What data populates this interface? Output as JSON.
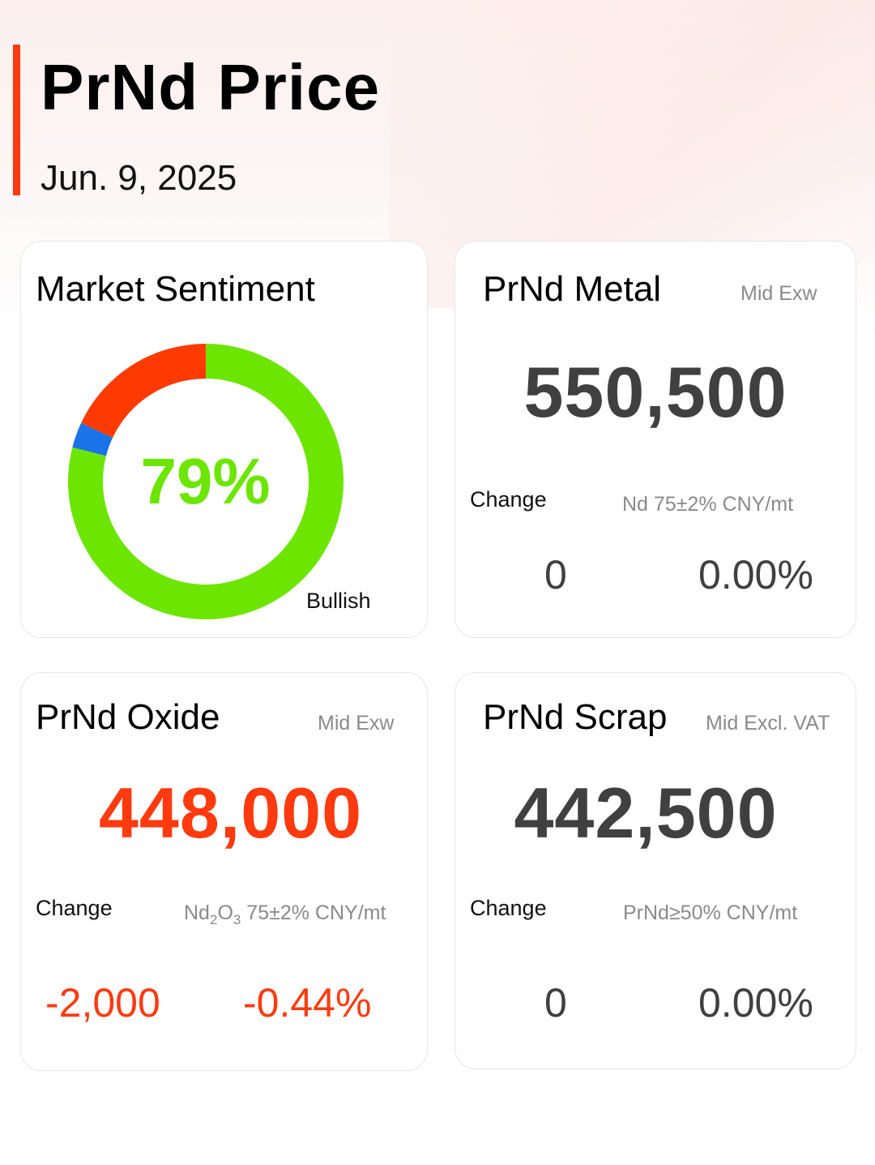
{
  "header": {
    "title": "PrNd Price",
    "date": "Jun. 9, 2025"
  },
  "sentiment": {
    "title": "Market Sentiment",
    "percent_label": "79%",
    "label": "Bullish",
    "segments": [
      {
        "name": "bullish",
        "value": 79,
        "color": "#6ce600"
      },
      {
        "name": "neutral",
        "value": 3,
        "color": "#1a73e8"
      },
      {
        "name": "bearish",
        "value": 18,
        "color": "#ff3a00"
      }
    ]
  },
  "metal": {
    "title": "PrNd Metal",
    "meta": "Mid  Exw",
    "price": "550,500",
    "change_label": "Change",
    "spec": "Nd 75±2% CNY/mt",
    "change_abs": "0",
    "change_pct": "0.00%"
  },
  "oxide": {
    "title": "PrNd Oxide",
    "meta": "Mid  Exw",
    "price": "448,000",
    "change_label": "Change",
    "spec_prefix": "Nd",
    "spec_sub1": "2",
    "spec_mid": "O",
    "spec_sub2": "3",
    "spec_rest": " 75±2% CNY/mt",
    "change_abs": "-2,000",
    "change_pct": "-0.44%"
  },
  "scrap": {
    "title": "PrNd Scrap",
    "meta": "Mid  Excl. VAT",
    "price": "442,500",
    "change_label": "Change",
    "spec": "PrNd≥50% CNY/mt",
    "change_abs": "0",
    "change_pct": "0.00%"
  },
  "colors": {
    "accent": "#ff3a0f",
    "bullish": "#6ce600",
    "price_gray": "#404040"
  }
}
